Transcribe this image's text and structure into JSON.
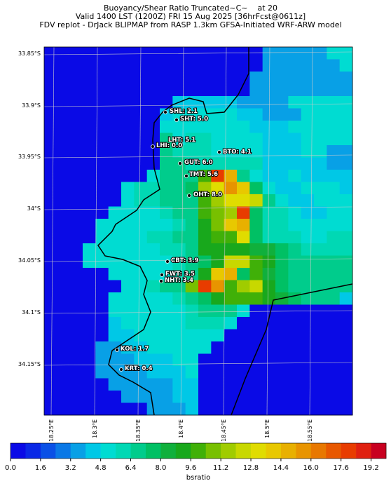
{
  "header": {
    "title": "Buoyancy/Shear Ratio Truncated~C~    at 20",
    "subtitle": "Valid 1400 LST (1200Z) FRI 15 Aug 2025 [36hrFcst@0611z]",
    "source": "FDV replot - DrJack BLIPMAP from RASP 1.3km GFSA-Initiated WRF-ARW model"
  },
  "map": {
    "lat_labels": [
      "33.85°S",
      "33.9°S",
      "33.95°S",
      "34°S",
      "34.05°S",
      "34.1°S",
      "34.15°S"
    ],
    "lon_labels": [
      "18.25°E",
      "18.3°E",
      "18.35°E",
      "18.4°E",
      "18.45°E",
      "18.5°E",
      "18.55°E"
    ],
    "stations": [
      {
        "label": "SHL: 2.1"
      },
      {
        "label": "SHT: 5.0"
      },
      {
        "label": "LHT: 5.1"
      },
      {
        "label": "LHI: 0.0"
      },
      {
        "label": "BTO: 4.1"
      },
      {
        "label": "GUT: 6.0"
      },
      {
        "label": "TMT: 5.6"
      },
      {
        "label": "OHT: 8.0"
      },
      {
        "label": "CBT: 3.9"
      },
      {
        "label": "FWT: 3.5"
      },
      {
        "label": "NHT: 3.4"
      },
      {
        "label": "KOL: 1.7"
      },
      {
        "label": "KRT: 0.4"
      }
    ]
  },
  "colorbar": {
    "label": "bsratio",
    "lim": [
      0,
      20
    ],
    "ticks": [
      {
        "value": 0,
        "label": "0.0"
      },
      1.6,
      3.2,
      4.8,
      6.4,
      {
        "value": 8,
        "label": "8.0"
      },
      9.6,
      11.2,
      12.8,
      14.4,
      {
        "value": 16,
        "label": "16.0"
      },
      17.6,
      19.2
    ]
  }
}
